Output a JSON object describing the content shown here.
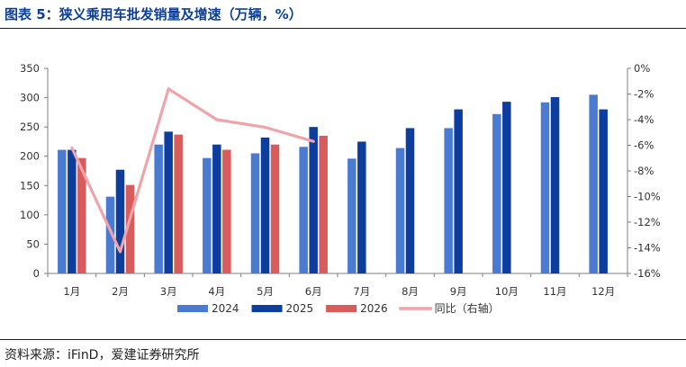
{
  "header": {
    "title": "图表 5：狭义乘用车批发销量及增速（万辆，%）"
  },
  "footer": {
    "source": "资料来源：iFinD，爱建证券研究所"
  },
  "chart_data": {
    "type": "bar",
    "categories": [
      "1月",
      "2月",
      "3月",
      "4月",
      "5月",
      "6月",
      "7月",
      "8月",
      "9月",
      "10月",
      "11月",
      "12月"
    ],
    "series": [
      {
        "name": "2024",
        "type": "bar",
        "axis": "left",
        "color": "#4a7bd0",
        "values": [
          211,
          131,
          220,
          197,
          205,
          216,
          196,
          214,
          248,
          272,
          292,
          305
        ]
      },
      {
        "name": "2025",
        "type": "bar",
        "axis": "left",
        "color": "#0d3e9e",
        "values": [
          211,
          177,
          242,
          220,
          232,
          250,
          225,
          248,
          280,
          293,
          301,
          280
        ]
      },
      {
        "name": "2026",
        "type": "bar",
        "axis": "left",
        "color": "#d95c5c",
        "values": [
          197,
          151,
          237,
          211,
          220,
          235,
          null,
          null,
          null,
          null,
          null,
          null
        ]
      },
      {
        "name": "同比（右轴）",
        "type": "line",
        "axis": "right",
        "color": "#f0a3a8",
        "values": [
          -6.2,
          -14.3,
          -1.6,
          -4.0,
          -4.6,
          -5.7,
          null,
          null,
          null,
          null,
          null,
          null
        ]
      }
    ],
    "y_left": {
      "min": 0,
      "max": 350,
      "ticks": [
        0,
        50,
        100,
        150,
        200,
        250,
        300,
        350
      ],
      "tick_labels": [
        "0",
        "50",
        "100",
        "150",
        "200",
        "250",
        "300",
        "350"
      ]
    },
    "y_right": {
      "min": -16,
      "max": 0,
      "ticks": [
        0,
        -2,
        -4,
        -6,
        -8,
        -10,
        -12,
        -14,
        -16
      ],
      "tick_labels": [
        "0%",
        "-2%",
        "-4%",
        "-6%",
        "-8%",
        "-10%",
        "-12%",
        "-14%",
        "-16%"
      ]
    },
    "legend": {
      "position": "bottom"
    },
    "grid": false
  }
}
